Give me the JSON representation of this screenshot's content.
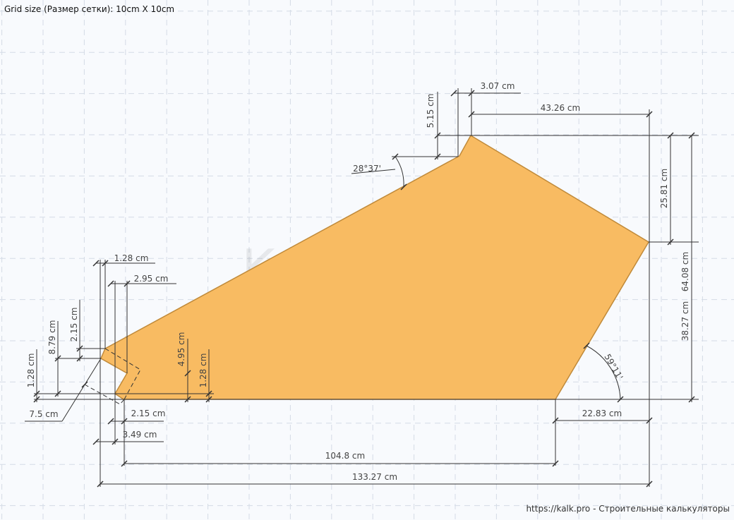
{
  "title": "Grid size (Размер сетки): 10cm X 10cm",
  "watermark": "KALK.PRO",
  "footer": "https://kalk.pro - Строительные калькуляторы",
  "colors": {
    "shape_fill": "#f8bb62",
    "shape_stroke": "#c08a3a",
    "dimension": "#333333",
    "grid": "#d4dbe6"
  },
  "dimensions": {
    "total_width": "133.27 cm",
    "bottom_width": "104.8 cm",
    "bottom_right_offset": "22.83 cm",
    "bottom_left_offset": "3.49 cm",
    "bottom_notch_offset": "2.15 cm",
    "top_left_offset": "1.28 cm",
    "notch_depth": "2.95 cm",
    "top_step_height": "5.15 cm",
    "top_step_width": "3.07 cm",
    "top_edge": "43.26 cm",
    "right_upper_height": "25.81 cm",
    "right_total_height": "64.08 cm",
    "right_lower_height": "38.27 cm",
    "notch_height": "4.95 cm",
    "bottom_step_right": "1.28 cm",
    "left_small_height": "2.15 cm",
    "left_mid_height": "8.79 cm",
    "left_bottom_height": "1.28 cm",
    "slant_length": "7.5 cm"
  },
  "angles": {
    "top_left_angle": "28°37'",
    "bottom_right_angle": "59°11'"
  }
}
